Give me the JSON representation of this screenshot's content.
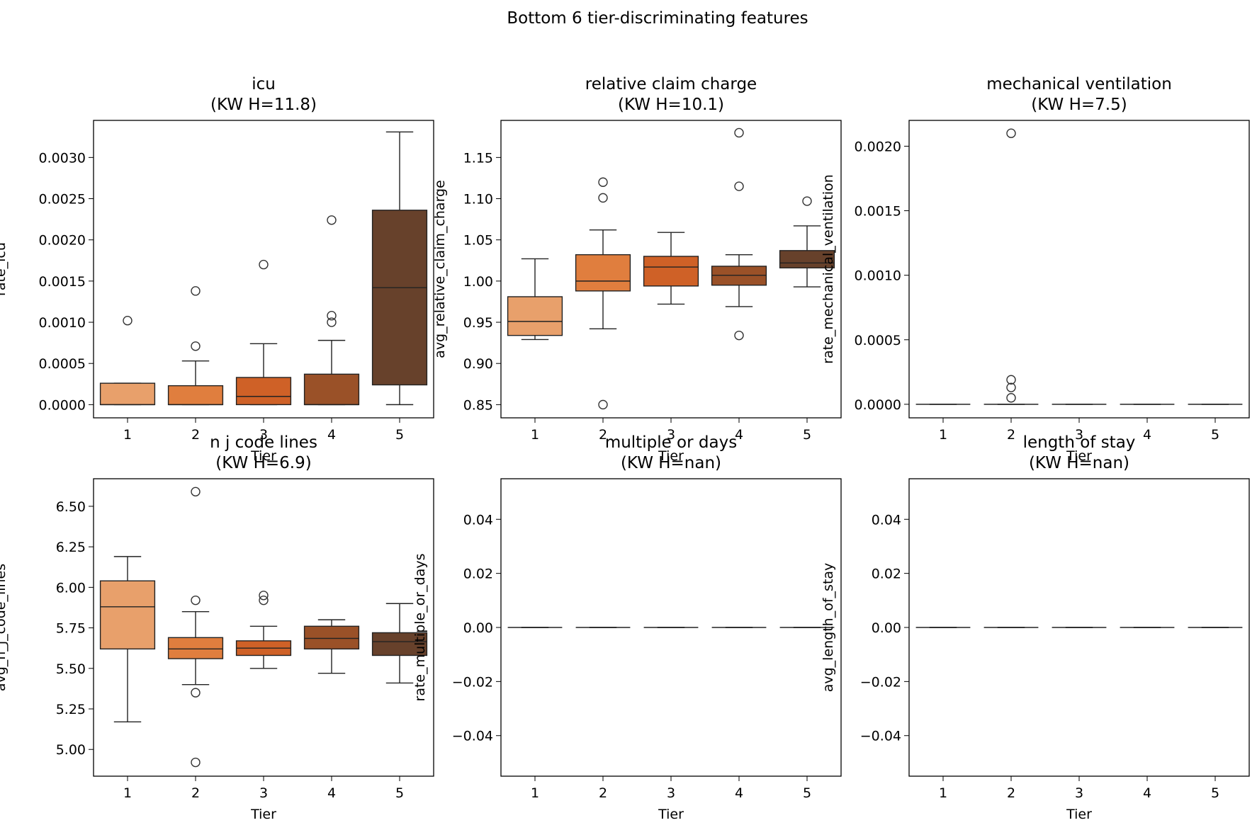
{
  "chart_data": {
    "title": "Bottom 6 tier-discriminating features",
    "type": "box",
    "colors": [
      "#e8a06b",
      "#e07e3e",
      "#cf6127",
      "#9a5128",
      "#67412b"
    ],
    "panels": [
      {
        "title_line1": "icu",
        "title_line2": "(KW H=11.8)",
        "xlabel": "Tier",
        "ylabel": "rate_icu",
        "categories": [
          "1",
          "2",
          "3",
          "4",
          "5"
        ],
        "ylim": [
          -0.00016,
          0.00345
        ],
        "yticks": [
          0,
          0.0005,
          0.001,
          0.0015,
          0.002,
          0.0025,
          0.003
        ],
        "ytick_labels": [
          "0.0000",
          "0.0005",
          "0.0010",
          "0.0015",
          "0.0020",
          "0.0025",
          "0.0030"
        ],
        "boxes": [
          {
            "tier": "1",
            "whislo": 0,
            "q1": 0,
            "med": 0,
            "q3": 0.00026,
            "whishi": 0.00026,
            "fliers": [
              0.00102
            ]
          },
          {
            "tier": "2",
            "whislo": 0,
            "q1": 0,
            "med": 0,
            "q3": 0.00023,
            "whishi": 0.00053,
            "fliers": [
              0.00071,
              0.00138
            ]
          },
          {
            "tier": "3",
            "whislo": 0,
            "q1": 0,
            "med": 0.0001,
            "q3": 0.00033,
            "whishi": 0.00074,
            "fliers": [
              0.0017
            ]
          },
          {
            "tier": "4",
            "whislo": 0,
            "q1": 0,
            "med": 0,
            "q3": 0.00037,
            "whishi": 0.00078,
            "fliers": [
              0.001,
              0.00108,
              0.00224
            ]
          },
          {
            "tier": "5",
            "whislo": 0,
            "q1": 0.00024,
            "med": 0.00142,
            "q3": 0.00236,
            "whishi": 0.00331,
            "fliers": []
          }
        ]
      },
      {
        "title_line1": "relative claim charge",
        "title_line2": "(KW H=10.1)",
        "xlabel": "Tier",
        "ylabel": "avg_relative_claim_charge",
        "categories": [
          "1",
          "2",
          "3",
          "4",
          "5"
        ],
        "ylim": [
          0.834,
          1.195
        ],
        "yticks": [
          0.85,
          0.9,
          0.95,
          1.0,
          1.05,
          1.1,
          1.15
        ],
        "ytick_labels": [
          "0.85",
          "0.90",
          "0.95",
          "1.00",
          "1.05",
          "1.10",
          "1.15"
        ],
        "boxes": [
          {
            "tier": "1",
            "whislo": 0.929,
            "q1": 0.934,
            "med": 0.951,
            "q3": 0.981,
            "whishi": 1.027,
            "fliers": []
          },
          {
            "tier": "2",
            "whislo": 0.942,
            "q1": 0.988,
            "med": 1.0,
            "q3": 1.032,
            "whishi": 1.062,
            "fliers": [
              0.85,
              1.101,
              1.12
            ]
          },
          {
            "tier": "3",
            "whislo": 0.972,
            "q1": 0.994,
            "med": 1.017,
            "q3": 1.03,
            "whishi": 1.059,
            "fliers": []
          },
          {
            "tier": "4",
            "whislo": 0.969,
            "q1": 0.995,
            "med": 1.007,
            "q3": 1.018,
            "whishi": 1.032,
            "fliers": [
              0.934,
              1.115,
              1.18
            ]
          },
          {
            "tier": "5",
            "whislo": 0.993,
            "q1": 1.016,
            "med": 1.022,
            "q3": 1.037,
            "whishi": 1.067,
            "fliers": [
              1.097
            ]
          }
        ]
      },
      {
        "title_line1": "mechanical ventilation",
        "title_line2": "(KW H=7.5)",
        "xlabel": "Tier",
        "ylabel": "rate_mechanical_ventilation",
        "categories": [
          "1",
          "2",
          "3",
          "4",
          "5"
        ],
        "ylim": [
          -0.000105,
          0.0022
        ],
        "yticks": [
          0,
          0.0005,
          0.001,
          0.0015,
          0.002
        ],
        "ytick_labels": [
          "0.0000",
          "0.0005",
          "0.0010",
          "0.0015",
          "0.0020"
        ],
        "boxes": [
          {
            "tier": "1",
            "whislo": 0,
            "q1": 0,
            "med": 0,
            "q3": 0,
            "whishi": 0,
            "fliers": []
          },
          {
            "tier": "2",
            "whislo": 0,
            "q1": 0,
            "med": 0,
            "q3": 0,
            "whishi": 0,
            "fliers": [
              5e-05,
              0.00013,
              0.00019,
              0.0021
            ]
          },
          {
            "tier": "3",
            "whislo": 0,
            "q1": 0,
            "med": 0,
            "q3": 0,
            "whishi": 0,
            "fliers": []
          },
          {
            "tier": "4",
            "whislo": 0,
            "q1": 0,
            "med": 0,
            "q3": 0,
            "whishi": 0,
            "fliers": []
          },
          {
            "tier": "5",
            "whislo": 0,
            "q1": 0,
            "med": 0,
            "q3": 0,
            "whishi": 0,
            "fliers": []
          }
        ]
      },
      {
        "title_line1": "n j code lines",
        "title_line2": "(KW H=6.9)",
        "xlabel": "Tier",
        "ylabel": "avg_n_j_code_lines",
        "categories": [
          "1",
          "2",
          "3",
          "4",
          "5"
        ],
        "ylim": [
          4.835,
          6.67
        ],
        "yticks": [
          5.0,
          5.25,
          5.5,
          5.75,
          6.0,
          6.25,
          6.5
        ],
        "ytick_labels": [
          "5.00",
          "5.25",
          "5.50",
          "5.75",
          "6.00",
          "6.25",
          "6.50"
        ],
        "boxes": [
          {
            "tier": "1",
            "whislo": 5.17,
            "q1": 5.62,
            "med": 5.88,
            "q3": 6.04,
            "whishi": 6.19,
            "fliers": []
          },
          {
            "tier": "2",
            "whislo": 5.4,
            "q1": 5.56,
            "med": 5.62,
            "q3": 5.69,
            "whishi": 5.85,
            "fliers": [
              4.92,
              5.35,
              5.92,
              6.59
            ]
          },
          {
            "tier": "3",
            "whislo": 5.5,
            "q1": 5.58,
            "med": 5.625,
            "q3": 5.67,
            "whishi": 5.76,
            "fliers": [
              5.92,
              5.95
            ]
          },
          {
            "tier": "4",
            "whislo": 5.47,
            "q1": 5.62,
            "med": 5.685,
            "q3": 5.76,
            "whishi": 5.8,
            "fliers": []
          },
          {
            "tier": "5",
            "whislo": 5.41,
            "q1": 5.58,
            "med": 5.665,
            "q3": 5.72,
            "whishi": 5.9,
            "fliers": []
          }
        ]
      },
      {
        "title_line1": "multiple or days",
        "title_line2": "(KW H=nan)",
        "xlabel": "Tier",
        "ylabel": "rate_multiple_or_days",
        "categories": [
          "1",
          "2",
          "3",
          "4",
          "5"
        ],
        "ylim": [
          -0.055,
          0.055
        ],
        "yticks": [
          -0.04,
          -0.02,
          0,
          0.02,
          0.04
        ],
        "ytick_labels": [
          "−0.04",
          "−0.02",
          "0.00",
          "0.02",
          "0.04"
        ],
        "boxes": [
          {
            "tier": "1",
            "whislo": 0,
            "q1": 0,
            "med": 0,
            "q3": 0,
            "whishi": 0,
            "fliers": []
          },
          {
            "tier": "2",
            "whislo": 0,
            "q1": 0,
            "med": 0,
            "q3": 0,
            "whishi": 0,
            "fliers": []
          },
          {
            "tier": "3",
            "whislo": 0,
            "q1": 0,
            "med": 0,
            "q3": 0,
            "whishi": 0,
            "fliers": []
          },
          {
            "tier": "4",
            "whislo": 0,
            "q1": 0,
            "med": 0,
            "q3": 0,
            "whishi": 0,
            "fliers": []
          },
          {
            "tier": "5",
            "whislo": 0,
            "q1": 0,
            "med": 0,
            "q3": 0,
            "whishi": 0,
            "fliers": []
          }
        ]
      },
      {
        "title_line1": "length of stay",
        "title_line2": "(KW H=nan)",
        "xlabel": "Tier",
        "ylabel": "avg_length_of_stay",
        "categories": [
          "1",
          "2",
          "3",
          "4",
          "5"
        ],
        "ylim": [
          -0.055,
          0.055
        ],
        "yticks": [
          -0.04,
          -0.02,
          0,
          0.02,
          0.04
        ],
        "ytick_labels": [
          "−0.04",
          "−0.02",
          "0.00",
          "0.02",
          "0.04"
        ],
        "boxes": [
          {
            "tier": "1",
            "whislo": 0,
            "q1": 0,
            "med": 0,
            "q3": 0,
            "whishi": 0,
            "fliers": []
          },
          {
            "tier": "2",
            "whislo": 0,
            "q1": 0,
            "med": 0,
            "q3": 0,
            "whishi": 0,
            "fliers": []
          },
          {
            "tier": "3",
            "whislo": 0,
            "q1": 0,
            "med": 0,
            "q3": 0,
            "whishi": 0,
            "fliers": []
          },
          {
            "tier": "4",
            "whislo": 0,
            "q1": 0,
            "med": 0,
            "q3": 0,
            "whishi": 0,
            "fliers": []
          },
          {
            "tier": "5",
            "whislo": 0,
            "q1": 0,
            "med": 0,
            "q3": 0,
            "whishi": 0,
            "fliers": []
          }
        ]
      }
    ]
  }
}
